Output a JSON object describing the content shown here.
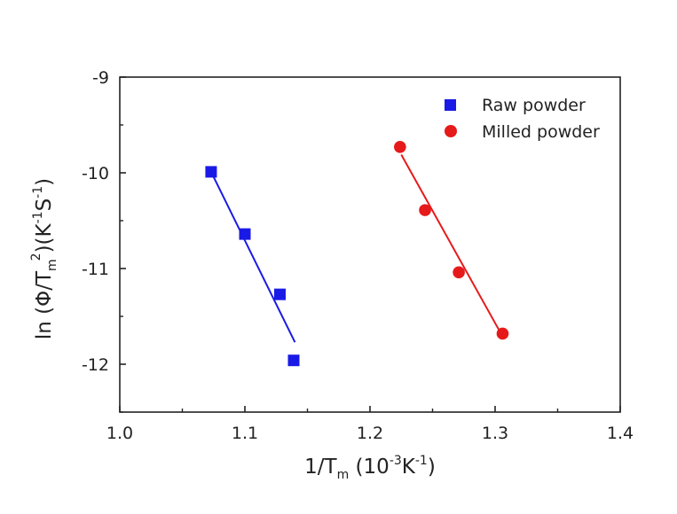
{
  "chart_data": {
    "type": "scatter",
    "xlabel": {
      "main": "1/T",
      "sub": "m",
      "unit_open": " (10",
      "sup1": "-3",
      "unit_mid": "K",
      "sup2": "-1",
      "unit_close": ")"
    },
    "ylabel": {
      "prefix": "ln (Φ/T",
      "sub": "m",
      "sup": "2",
      "mid": ")(K",
      "sup1": "-1",
      "s": "S",
      "sup2": "-1",
      "close": ")"
    },
    "xlim": [
      1.0,
      1.4
    ],
    "ylim": [
      -12.5,
      -9.0
    ],
    "xticks": [
      1.0,
      1.1,
      1.2,
      1.3,
      1.4
    ],
    "xtick_labels": [
      "1.0",
      "1.1",
      "1.2",
      "1.3",
      "1.4"
    ],
    "yticks": [
      -12,
      -11,
      -10,
      -9
    ],
    "ytick_labels": [
      "-12",
      "-11",
      "-10",
      "-9"
    ],
    "grid": false,
    "legend_position": "top-right",
    "series": [
      {
        "name": "Raw powder",
        "marker": "square",
        "color": "#1a1ae6",
        "x": [
          1.073,
          1.1,
          1.128,
          1.139
        ],
        "y": [
          -9.99,
          -10.64,
          -11.27,
          -11.96
        ],
        "fit": {
          "x": [
            1.073,
            1.14
          ],
          "y": [
            -9.99,
            -11.77
          ]
        }
      },
      {
        "name": "Milled powder",
        "marker": "circle",
        "color": "#e61a1a",
        "x": [
          1.224,
          1.244,
          1.271,
          1.306
        ],
        "y": [
          -9.73,
          -10.39,
          -11.04,
          -11.68
        ],
        "fit": {
          "x": [
            1.225,
            1.306
          ],
          "y": [
            -9.81,
            -11.71
          ]
        }
      }
    ]
  }
}
